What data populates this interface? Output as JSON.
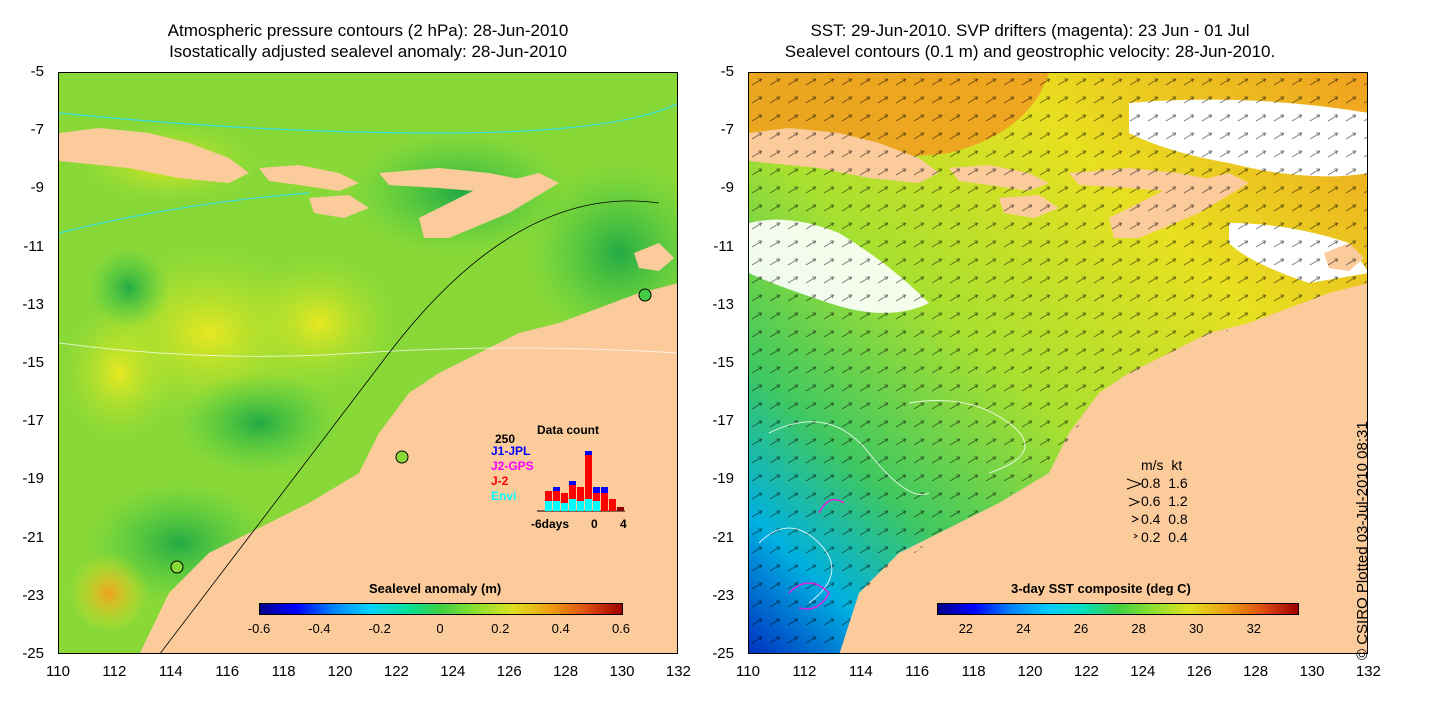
{
  "left": {
    "title_line1": "Atmospheric pressure contours (2 hPa): 28-Jun-2010",
    "title_line2": "Isostatically adjusted sealevel anomaly: 28-Jun-2010",
    "colorbar": {
      "label": "Sealevel anomaly (m)",
      "ticks": [
        "-0.6",
        "-0.4",
        "-0.2",
        "0",
        "0.2",
        "0.4",
        "0.6"
      ],
      "range": [
        -0.6,
        0.6
      ]
    },
    "data_count": {
      "title": "Data count",
      "ymax_label": "250",
      "series": [
        {
          "name": "J1-JPL",
          "color": "#0000ff"
        },
        {
          "name": "J2-GPS",
          "color": "#ff00ff"
        },
        {
          "name": "J-2",
          "color": "#ff0000"
        },
        {
          "name": "Envi",
          "color": "#00ffff"
        }
      ],
      "xlabel_left": "-6days",
      "xlabel_mid": "0",
      "xlabel_right": "4"
    }
  },
  "right": {
    "title_line1": "SST: 29-Jun-2010. SVP drifters (magenta): 23 Jun - 01 Jul",
    "title_line2": "Sealevel contours (0.1 m) and geostrophic velocity: 28-Jun-2010.",
    "colorbar": {
      "label": "3-day SST composite (deg C)",
      "ticks": [
        "22",
        "24",
        "26",
        "28",
        "30",
        "32"
      ],
      "range": [
        21,
        33.5
      ]
    },
    "velocity_legend": {
      "header": "m/s  kt",
      "rows": [
        "0.8  1.6",
        "0.6  1.2",
        "0.4  0.8",
        "0.2  0.4"
      ]
    }
  },
  "axes": {
    "y_ticks": [
      "-5",
      "-7",
      "-9",
      "-11",
      "-13",
      "-15",
      "-17",
      "-19",
      "-21",
      "-23",
      "-25"
    ],
    "x_ticks": [
      "110",
      "112",
      "114",
      "116",
      "118",
      "120",
      "122",
      "124",
      "126",
      "128",
      "130",
      "132"
    ]
  },
  "copyright": "© CSIRO Plotted 03-Jul-2010 08:31",
  "colors": {
    "land": "#fccb9c",
    "sea_green": "#44cc44",
    "sea_yellowgreen": "#a8e030",
    "sea_yellow": "#e8e820"
  }
}
